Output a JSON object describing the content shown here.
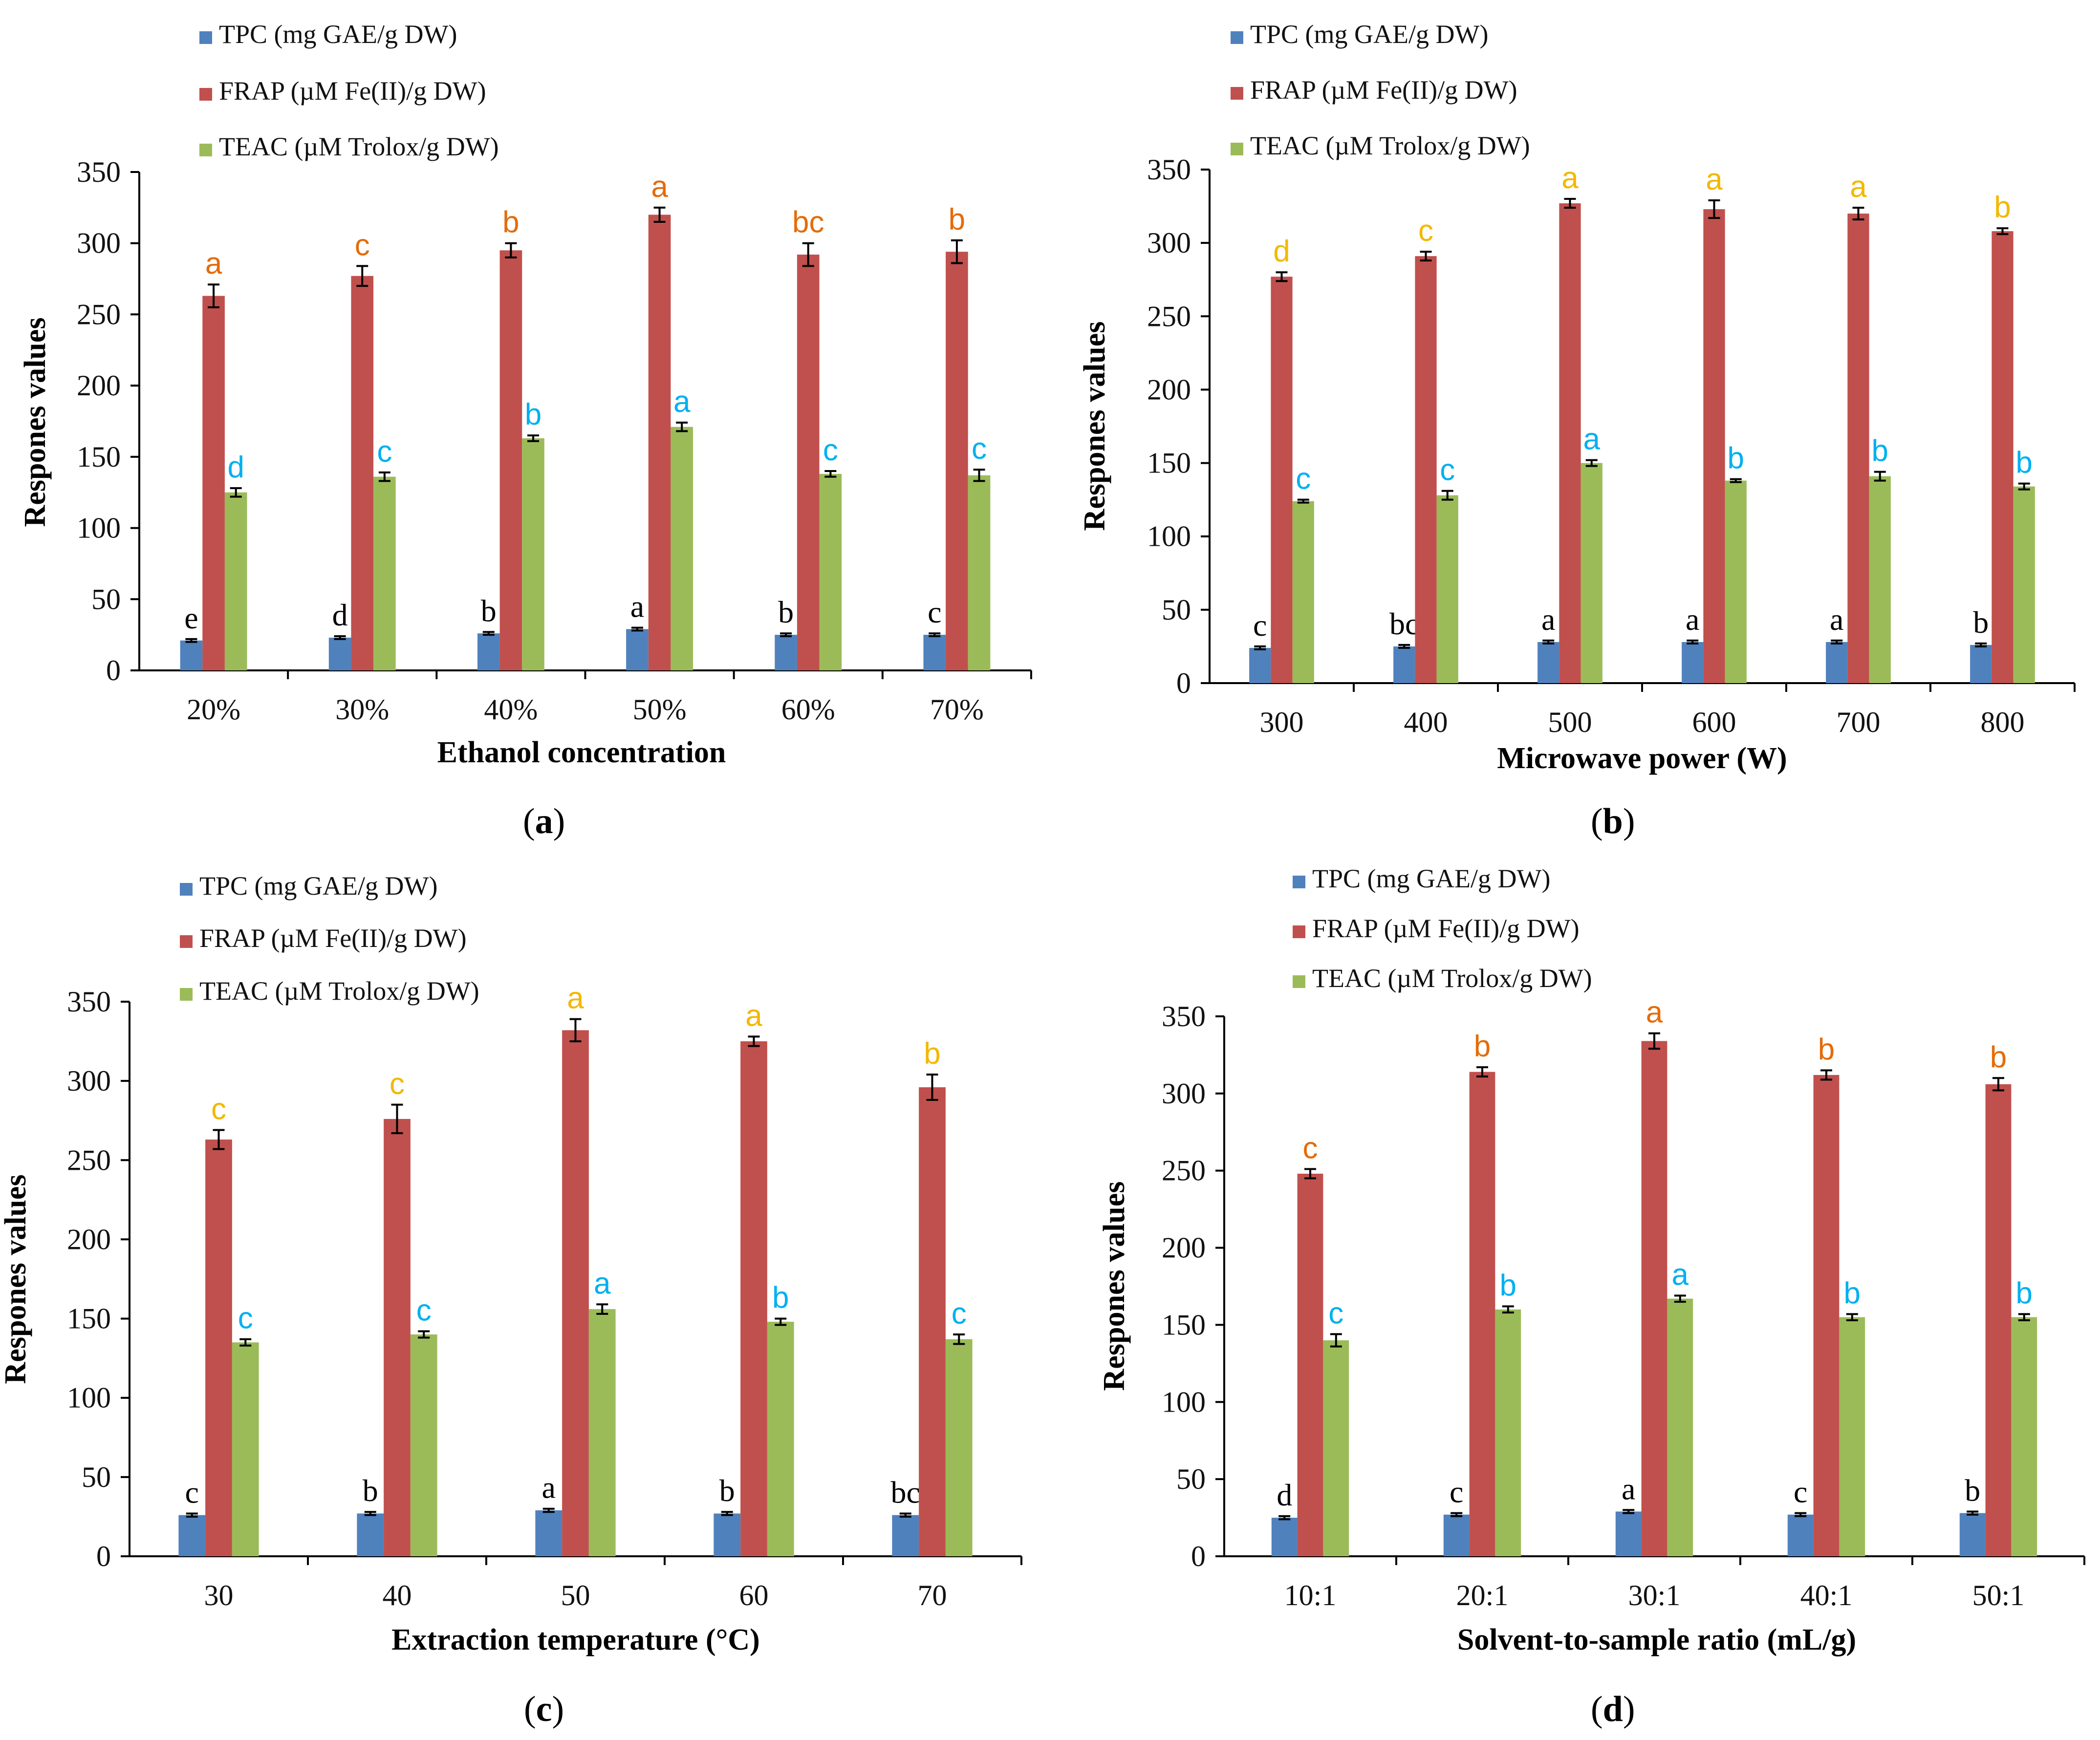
{
  "colors": {
    "tpc": "#4f81bd",
    "frap": "#c0504d",
    "teac": "#9bbb59",
    "sig_tpc": "#000000",
    "sig_frap_orange": "#e46c0a",
    "sig_frap_yellow": "#f2b800",
    "sig_teac": "#00b0f0"
  },
  "chart_data": [
    {
      "panel": "a",
      "type": "bar",
      "caption_letter": "a",
      "xlabel": "Ethanol concentration",
      "ylabel": "Respones values",
      "ylim": [
        0,
        350
      ],
      "yticks": [
        "0",
        "50",
        "100",
        "150",
        "200",
        "250",
        "300",
        "350"
      ],
      "categories": [
        "20%",
        "30%",
        "40%",
        "50%",
        "60%",
        "70%"
      ],
      "legend": [
        "TPC (mg GAE/g DW)",
        "FRAP (µM Fe(II)/g DW)",
        "TEAC (µM Trolox/g DW)"
      ],
      "series": [
        {
          "name": "TPC (mg GAE/g DW)",
          "values": [
            21,
            23,
            26,
            29,
            25,
            25
          ],
          "errors": [
            1,
            1,
            1,
            1,
            1,
            1
          ],
          "letters": [
            "e",
            "d",
            "b",
            "a",
            "b",
            "c"
          ],
          "letter_style": "sig_tpc"
        },
        {
          "name": "FRAP (µM Fe(II)/g DW)",
          "values": [
            263,
            277,
            295,
            320,
            292,
            294
          ],
          "errors": [
            8,
            7,
            5,
            5,
            8,
            8
          ],
          "letters": [
            "a",
            "c",
            "b",
            "a",
            "bc",
            "b"
          ],
          "letter_style": "sig_frap_orange"
        },
        {
          "name": "TEAC (µM Trolox/g DW)",
          "values": [
            125,
            136,
            163,
            171,
            138,
            137
          ],
          "errors": [
            3,
            3,
            2,
            3,
            2,
            4
          ],
          "letters": [
            "d",
            "c",
            "b",
            "a",
            "c",
            "c"
          ],
          "letter_style": "sig_teac"
        }
      ]
    },
    {
      "panel": "b",
      "type": "bar",
      "caption_letter": "b",
      "xlabel": "Microwave power (W)",
      "ylabel": "Respones values",
      "ylim": [
        0,
        350
      ],
      "yticks": [
        "0",
        "50",
        "100",
        "150",
        "200",
        "250",
        "300",
        "350"
      ],
      "categories": [
        "300",
        "400",
        "500",
        "600",
        "700",
        "800"
      ],
      "legend": [
        "TPC (mg GAE/g DW)",
        "FRAP (µM Fe(II)/g DW)",
        "TEAC (µM Trolox/g DW)"
      ],
      "series": [
        {
          "name": "TPC (mg GAE/g DW)",
          "values": [
            24,
            25,
            28,
            28,
            28,
            26
          ],
          "errors": [
            1,
            1,
            1,
            1,
            1,
            1
          ],
          "letters": [
            "c",
            "bc",
            "a",
            "a",
            "a",
            "b"
          ],
          "letter_style": "sig_tpc"
        },
        {
          "name": "FRAP (µM Fe(II)/g DW)",
          "values": [
            277,
            291,
            327,
            323,
            320,
            308
          ],
          "errors": [
            3,
            3,
            3,
            6,
            4,
            2
          ],
          "letters": [
            "d",
            "c",
            "a",
            "a",
            "a",
            "b"
          ],
          "letter_style": "sig_frap_yellow"
        },
        {
          "name": "TEAC (µM Trolox/g DW)",
          "values": [
            124,
            128,
            150,
            138,
            141,
            134
          ],
          "errors": [
            1,
            3,
            2,
            1,
            3,
            2
          ],
          "letters": [
            "c",
            "c",
            "a",
            "b",
            "b",
            "b"
          ],
          "letter_style": "sig_teac"
        }
      ]
    },
    {
      "panel": "c",
      "type": "bar",
      "caption_letter": "c",
      "xlabel": "Extraction temperature (°C)",
      "ylabel": "Respones values",
      "ylim": [
        0,
        350
      ],
      "yticks": [
        "0",
        "50",
        "100",
        "150",
        "200",
        "250",
        "300",
        "350"
      ],
      "categories": [
        "30",
        "40",
        "50",
        "60",
        "70"
      ],
      "legend": [
        "TPC (mg GAE/g DW)",
        "FRAP (µM Fe(II)/g DW)",
        "TEAC (µM Trolox/g DW)"
      ],
      "series": [
        {
          "name": "TPC (mg GAE/g DW)",
          "values": [
            26,
            27,
            29,
            27,
            26
          ],
          "errors": [
            1,
            1,
            1,
            1,
            1
          ],
          "letters": [
            "c",
            "b",
            "a",
            "b",
            "bc"
          ],
          "letter_style": "sig_tpc"
        },
        {
          "name": "FRAP (µM Fe(II)/g DW)",
          "values": [
            263,
            276,
            332,
            325,
            296
          ],
          "errors": [
            6,
            9,
            7,
            3,
            8
          ],
          "letters": [
            "c",
            "c",
            "a",
            "a",
            "b"
          ],
          "letter_style": "sig_frap_yellow"
        },
        {
          "name": "TEAC (µM Trolox/g DW)",
          "values": [
            135,
            140,
            156,
            148,
            137
          ],
          "errors": [
            2,
            2,
            3,
            2,
            3
          ],
          "letters": [
            "c",
            "c",
            "a",
            "b",
            "c"
          ],
          "letter_style": "sig_teac"
        }
      ]
    },
    {
      "panel": "d",
      "type": "bar",
      "caption_letter": "d",
      "xlabel": "Solvent-to-sample ratio (mL/g)",
      "ylabel": "Respones values",
      "ylim": [
        0,
        350
      ],
      "yticks": [
        "0",
        "50",
        "100",
        "150",
        "200",
        "250",
        "300",
        "350"
      ],
      "categories": [
        "10:1",
        "20:1",
        "30:1",
        "40:1",
        "50:1"
      ],
      "legend": [
        "TPC (mg GAE/g DW)",
        "FRAP (µM Fe(II)/g DW)",
        "TEAC (µM Trolox/g DW)"
      ],
      "series": [
        {
          "name": "TPC (mg GAE/g DW)",
          "values": [
            25,
            27,
            29,
            27,
            28
          ],
          "errors": [
            1,
            1,
            1,
            1,
            1
          ],
          "letters": [
            "d",
            "c",
            "a",
            "c",
            "b"
          ],
          "letter_style": "sig_tpc"
        },
        {
          "name": "FRAP (µM Fe(II)/g DW)",
          "values": [
            248,
            314,
            334,
            312,
            306
          ],
          "errors": [
            3,
            3,
            5,
            3,
            4
          ],
          "letters": [
            "c",
            "b",
            "a",
            "b",
            "b"
          ],
          "letter_style": "sig_frap_orange"
        },
        {
          "name": "TEAC (µM Trolox/g DW)",
          "values": [
            140,
            160,
            167,
            155,
            155
          ],
          "errors": [
            4,
            2,
            2,
            2,
            2
          ],
          "letters": [
            "c",
            "b",
            "a",
            "b",
            "b"
          ],
          "letter_style": "sig_teac"
        }
      ]
    }
  ]
}
